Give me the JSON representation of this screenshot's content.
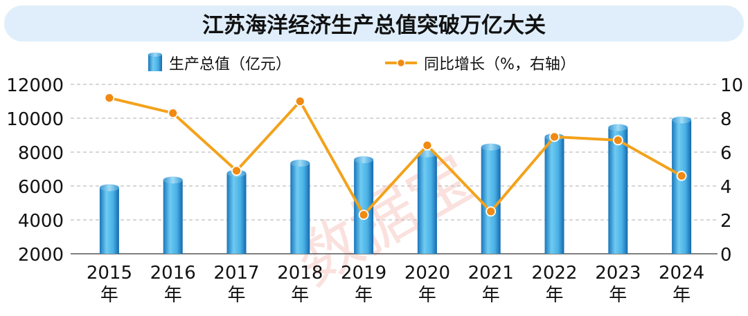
{
  "colors": {
    "bar_light": "#6cc6f0",
    "bar_dark": "#1673b8",
    "line": "#f3a21c",
    "point": "#f08a12",
    "title_bg": "#dfeefa",
    "watermark": "#f6c9c4"
  },
  "watermark": "数据宝",
  "chart_data": {
    "type": "bar",
    "title": "江苏海洋经济生产总值突破万亿大关",
    "categories": [
      "2015\n年",
      "2016\n年",
      "2017\n年",
      "2018\n年",
      "2019\n年",
      "2020\n年",
      "2021\n年",
      "2022\n年",
      "2023\n年",
      "2024\n年"
    ],
    "series": [
      {
        "name": "生产总值（亿元）",
        "type": "bar",
        "axis": "left",
        "values": [
          5900,
          6350,
          6750,
          7350,
          7550,
          7900,
          8300,
          8900,
          9450,
          9900
        ]
      },
      {
        "name": "同比增长（%，右轴）",
        "type": "line",
        "axis": "right",
        "values": [
          9.2,
          8.3,
          4.9,
          9.0,
          2.3,
          6.4,
          2.5,
          6.9,
          6.7,
          4.6
        ]
      }
    ],
    "ylim_left": [
      2000,
      12000
    ],
    "yticks_left": [
      "2000",
      "4000",
      "6000",
      "8000",
      "10000",
      "12000"
    ],
    "ylim_right": [
      0,
      10
    ],
    "yticks_right": [
      "0",
      "2",
      "4",
      "6",
      "8",
      "10"
    ],
    "legend_position": "top-center",
    "grid": true
  }
}
